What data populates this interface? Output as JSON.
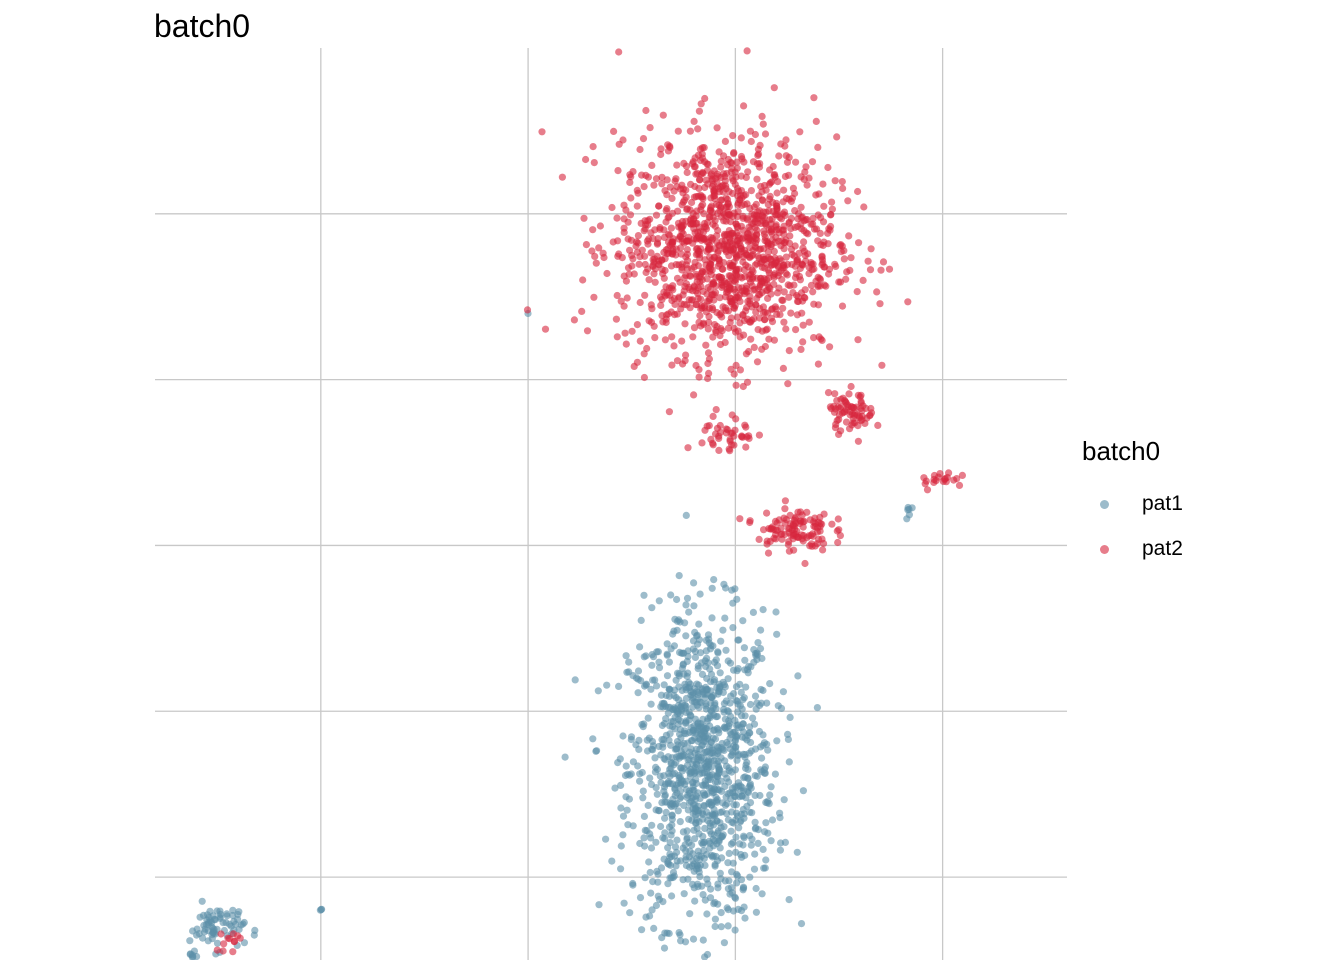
{
  "chart_data": {
    "type": "scatter",
    "title": "batch0",
    "xlabel": "",
    "ylabel": "",
    "xlim": [
      0,
      11
    ],
    "ylim": [
      0,
      11
    ],
    "x_breaks": [
      2,
      4.5,
      7,
      9.5
    ],
    "y_breaks": [
      1,
      3,
      5,
      7,
      9
    ],
    "grid": true,
    "legend": {
      "title": "batch0",
      "placement": "right"
    },
    "series": [
      {
        "name": "pat1",
        "color": "#5B8FA8",
        "clusters": [
          {
            "center": [
              6.6,
              2.3
            ],
            "spread": [
              0.8,
              1.7
            ],
            "count": 1150
          },
          {
            "center": [
              0.75,
              0.4
            ],
            "spread": [
              0.3,
              0.25
            ],
            "count": 70
          },
          {
            "center": [
              0.45,
              0.05
            ],
            "spread": [
              0.04,
              0.04
            ],
            "count": 8
          },
          {
            "center": [
              2.0,
              0.6
            ],
            "spread": [
              0.02,
              0.02
            ],
            "count": 3
          },
          {
            "center": [
              9.1,
              5.4
            ],
            "spread": [
              0.05,
              0.1
            ],
            "count": 6
          },
          {
            "center": [
              4.5,
              7.8
            ],
            "spread": [
              0.01,
              0.01
            ],
            "count": 1
          }
        ]
      },
      {
        "name": "pat2",
        "color": "#D7263D",
        "clusters": [
          {
            "center": [
              6.9,
              8.6
            ],
            "spread": [
              1.2,
              1.2
            ],
            "count": 1300
          },
          {
            "center": [
              7.7,
              5.2
            ],
            "spread": [
              0.4,
              0.25
            ],
            "count": 110
          },
          {
            "center": [
              8.4,
              6.6
            ],
            "spread": [
              0.25,
              0.2
            ],
            "count": 70
          },
          {
            "center": [
              6.9,
              6.3
            ],
            "spread": [
              0.3,
              0.25
            ],
            "count": 40
          },
          {
            "center": [
              9.5,
              5.8
            ],
            "spread": [
              0.25,
              0.1
            ],
            "count": 20
          },
          {
            "center": [
              0.9,
              0.25
            ],
            "spread": [
              0.2,
              0.1
            ],
            "count": 12
          },
          {
            "center": [
              4.5,
              7.85
            ],
            "spread": [
              0.01,
              0.01
            ],
            "count": 1
          }
        ]
      }
    ]
  }
}
